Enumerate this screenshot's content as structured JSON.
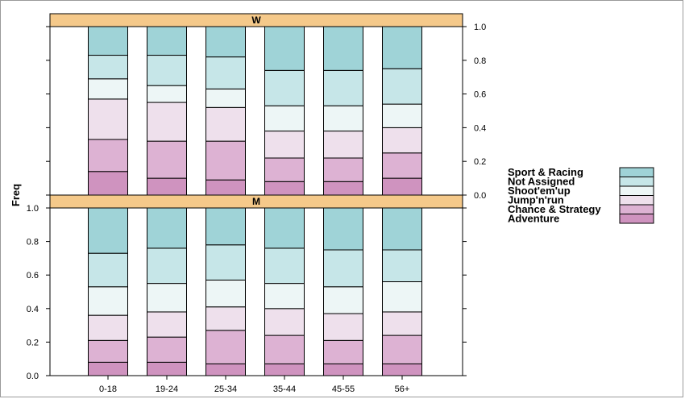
{
  "chart_data": {
    "type": "bar",
    "stacked": true,
    "ylabel": "Freq",
    "ylim": [
      0,
      1
    ],
    "y_ticks": [
      "0.0",
      "0.2",
      "0.4",
      "0.6",
      "0.8",
      "1.0"
    ],
    "categories": [
      "0-18",
      "19-24",
      "25-34",
      "35-44",
      "45-55",
      "56+"
    ],
    "series_names": [
      "Adventure",
      "Chance & Strategy",
      "Jump'n'run",
      "Shoot'em'up",
      "Not Assigned",
      "Sport & Racing"
    ],
    "colors": [
      "#cf93bf",
      "#ddb2d3",
      "#eee0ec",
      "#edf6f6",
      "#c6e6e8",
      "#9fd3d7"
    ],
    "panels": [
      {
        "name": "W",
        "values": [
          [
            0.14,
            0.19,
            0.24,
            0.12,
            0.14,
            0.17
          ],
          [
            0.1,
            0.22,
            0.23,
            0.1,
            0.18,
            0.17
          ],
          [
            0.09,
            0.23,
            0.2,
            0.11,
            0.19,
            0.18
          ],
          [
            0.08,
            0.14,
            0.16,
            0.15,
            0.21,
            0.26
          ],
          [
            0.08,
            0.14,
            0.16,
            0.15,
            0.21,
            0.26
          ],
          [
            0.1,
            0.15,
            0.15,
            0.14,
            0.21,
            0.25
          ]
        ]
      },
      {
        "name": "M",
        "values": [
          [
            0.08,
            0.13,
            0.15,
            0.17,
            0.2,
            0.27
          ],
          [
            0.08,
            0.15,
            0.15,
            0.17,
            0.21,
            0.24
          ],
          [
            0.07,
            0.2,
            0.14,
            0.16,
            0.21,
            0.22
          ],
          [
            0.07,
            0.17,
            0.16,
            0.15,
            0.21,
            0.24
          ],
          [
            0.07,
            0.14,
            0.16,
            0.16,
            0.22,
            0.25
          ],
          [
            0.07,
            0.17,
            0.14,
            0.18,
            0.19,
            0.25
          ]
        ]
      }
    ]
  }
}
